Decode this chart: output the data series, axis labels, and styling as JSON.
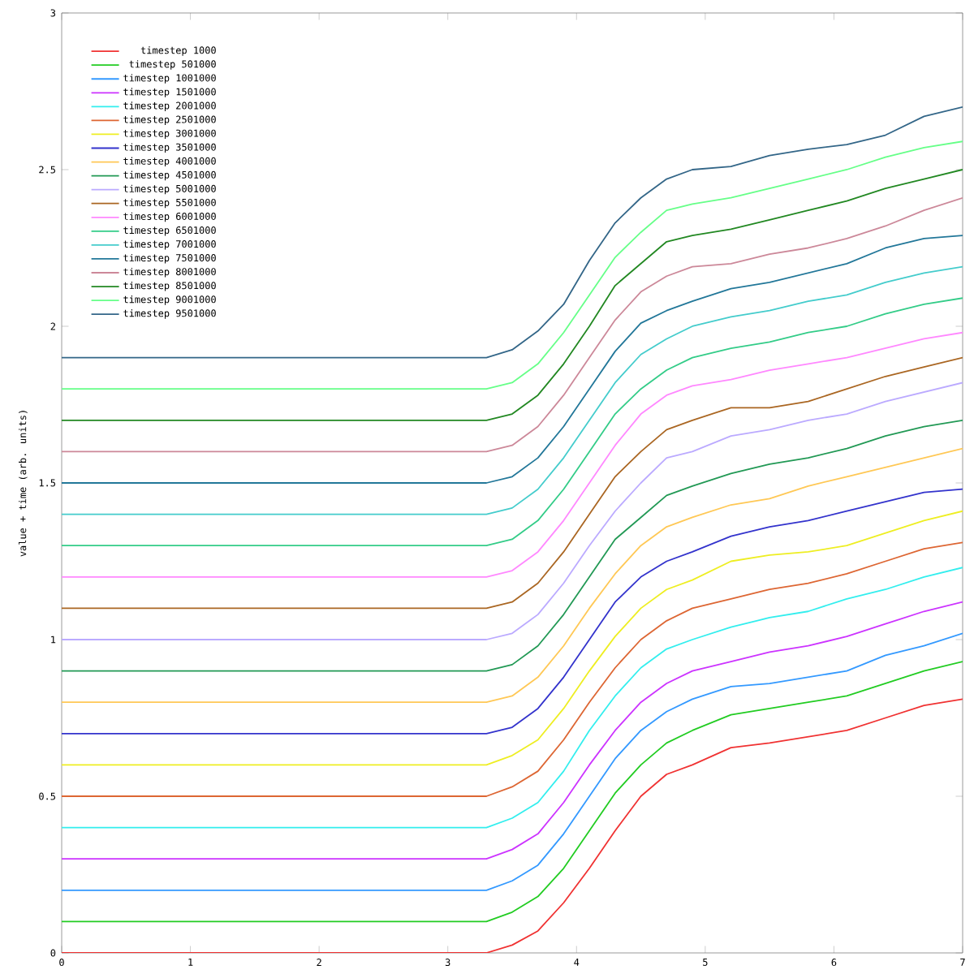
{
  "chart_data": {
    "type": "line",
    "ylabel": "value + time (arb. units)",
    "xlim": [
      0,
      7
    ],
    "ylim": [
      0,
      3
    ],
    "xticks": [
      0,
      1,
      2,
      3,
      4,
      5,
      6,
      7
    ],
    "yticks": [
      0,
      0.5,
      1,
      1.5,
      2,
      2.5,
      3
    ],
    "legend": "top left",
    "marker": "none",
    "line_style": "solid",
    "x": [
      0,
      3.3,
      3.5,
      3.7,
      3.9,
      4.1,
      4.3,
      4.5,
      4.7,
      4.9,
      5.2,
      5.5,
      5.8,
      6.1,
      6.4,
      6.7,
      7
    ],
    "series": [
      {
        "name": "timestep 1000",
        "color": "#f03232",
        "values": [
          0,
          0,
          0.025,
          0.07,
          0.16,
          0.27,
          0.39,
          0.5,
          0.57,
          0.6,
          0.655,
          0.67,
          0.69,
          0.71,
          0.75,
          0.79,
          0.81
        ]
      },
      {
        "name": "timestep 501000",
        "color": "#22cc22",
        "values": [
          0.1,
          0.1,
          0.13,
          0.18,
          0.27,
          0.39,
          0.51,
          0.6,
          0.67,
          0.71,
          0.76,
          0.78,
          0.8,
          0.82,
          0.86,
          0.9,
          0.93
        ]
      },
      {
        "name": "timestep 1001000",
        "color": "#3399ff",
        "values": [
          0.2,
          0.2,
          0.23,
          0.28,
          0.38,
          0.5,
          0.62,
          0.71,
          0.77,
          0.81,
          0.85,
          0.86,
          0.88,
          0.9,
          0.95,
          0.98,
          1.02
        ]
      },
      {
        "name": "timestep 1501000",
        "color": "#cc33ff",
        "values": [
          0.3,
          0.3,
          0.33,
          0.38,
          0.48,
          0.6,
          0.71,
          0.8,
          0.86,
          0.9,
          0.93,
          0.96,
          0.98,
          1.01,
          1.05,
          1.09,
          1.12
        ]
      },
      {
        "name": "timestep 2001000",
        "color": "#33eeee",
        "values": [
          0.4,
          0.4,
          0.43,
          0.48,
          0.58,
          0.71,
          0.82,
          0.91,
          0.97,
          1.0,
          1.04,
          1.07,
          1.09,
          1.13,
          1.16,
          1.2,
          1.23
        ]
      },
      {
        "name": "timestep 2501000",
        "color": "#dd6633",
        "values": [
          0.5,
          0.5,
          0.53,
          0.58,
          0.68,
          0.8,
          0.91,
          1.0,
          1.06,
          1.1,
          1.13,
          1.16,
          1.18,
          1.21,
          1.25,
          1.29,
          1.31
        ]
      },
      {
        "name": "timestep 3001000",
        "color": "#eeee22",
        "values": [
          0.6,
          0.6,
          0.63,
          0.68,
          0.78,
          0.9,
          1.01,
          1.1,
          1.16,
          1.19,
          1.25,
          1.27,
          1.28,
          1.3,
          1.34,
          1.38,
          1.41
        ]
      },
      {
        "name": "timestep 3501000",
        "color": "#3333cc",
        "values": [
          0.7,
          0.7,
          0.72,
          0.78,
          0.88,
          1.0,
          1.12,
          1.2,
          1.25,
          1.28,
          1.33,
          1.36,
          1.38,
          1.41,
          1.44,
          1.47,
          1.48
        ]
      },
      {
        "name": "timestep 4001000",
        "color": "#ffc855",
        "values": [
          0.8,
          0.8,
          0.82,
          0.88,
          0.98,
          1.1,
          1.21,
          1.3,
          1.36,
          1.39,
          1.43,
          1.45,
          1.49,
          1.52,
          1.55,
          1.58,
          1.61
        ]
      },
      {
        "name": "timestep 4501000",
        "color": "#229955",
        "values": [
          0.9,
          0.9,
          0.92,
          0.98,
          1.08,
          1.2,
          1.32,
          1.39,
          1.46,
          1.49,
          1.53,
          1.56,
          1.58,
          1.61,
          1.65,
          1.68,
          1.7
        ]
      },
      {
        "name": "timestep 5001000",
        "color": "#bbaaff",
        "values": [
          1.0,
          1.0,
          1.02,
          1.08,
          1.18,
          1.3,
          1.41,
          1.5,
          1.58,
          1.6,
          1.65,
          1.67,
          1.7,
          1.72,
          1.76,
          1.79,
          1.82
        ]
      },
      {
        "name": "timestep 5501000",
        "color": "#aa6622",
        "values": [
          1.1,
          1.1,
          1.12,
          1.18,
          1.28,
          1.4,
          1.52,
          1.6,
          1.67,
          1.7,
          1.74,
          1.74,
          1.76,
          1.8,
          1.84,
          1.87,
          1.9
        ]
      },
      {
        "name": "timestep 6001000",
        "color": "#ff88ff",
        "values": [
          1.2,
          1.2,
          1.22,
          1.28,
          1.38,
          1.5,
          1.62,
          1.72,
          1.78,
          1.81,
          1.83,
          1.86,
          1.88,
          1.9,
          1.93,
          1.96,
          1.98
        ]
      },
      {
        "name": "timestep 6501000",
        "color": "#33cc88",
        "values": [
          1.3,
          1.3,
          1.32,
          1.38,
          1.48,
          1.6,
          1.72,
          1.8,
          1.86,
          1.9,
          1.93,
          1.95,
          1.98,
          2.0,
          2.04,
          2.07,
          2.09
        ]
      },
      {
        "name": "timestep 7001000",
        "color": "#44cccc",
        "values": [
          1.4,
          1.4,
          1.42,
          1.48,
          1.58,
          1.7,
          1.82,
          1.91,
          1.96,
          2.0,
          2.03,
          2.05,
          2.08,
          2.1,
          2.14,
          2.17,
          2.19
        ]
      },
      {
        "name": "timestep 7501000",
        "color": "#227799",
        "values": [
          1.5,
          1.5,
          1.52,
          1.58,
          1.68,
          1.8,
          1.92,
          2.01,
          2.05,
          2.08,
          2.12,
          2.14,
          2.17,
          2.2,
          2.25,
          2.28,
          2.29
        ]
      },
      {
        "name": "timestep 8001000",
        "color": "#cc8899",
        "values": [
          1.6,
          1.6,
          1.62,
          1.68,
          1.78,
          1.9,
          2.02,
          2.11,
          2.16,
          2.19,
          2.2,
          2.23,
          2.25,
          2.28,
          2.32,
          2.37,
          2.41
        ]
      },
      {
        "name": "timestep 8501000",
        "color": "#228822",
        "values": [
          1.7,
          1.7,
          1.72,
          1.78,
          1.88,
          2.0,
          2.13,
          2.2,
          2.27,
          2.29,
          2.31,
          2.34,
          2.37,
          2.4,
          2.44,
          2.47,
          2.5
        ]
      },
      {
        "name": "timestep 9001000",
        "color": "#66ff88",
        "values": [
          1.8,
          1.8,
          1.82,
          1.88,
          1.98,
          2.1,
          2.22,
          2.3,
          2.37,
          2.39,
          2.41,
          2.44,
          2.47,
          2.5,
          2.54,
          2.57,
          2.59
        ]
      },
      {
        "name": "timestep 9501000",
        "color": "#336688",
        "values": [
          1.9,
          1.9,
          1.925,
          1.985,
          2.07,
          2.21,
          2.33,
          2.41,
          2.47,
          2.5,
          2.51,
          2.545,
          2.565,
          2.58,
          2.61,
          2.67,
          2.7
        ]
      }
    ]
  }
}
